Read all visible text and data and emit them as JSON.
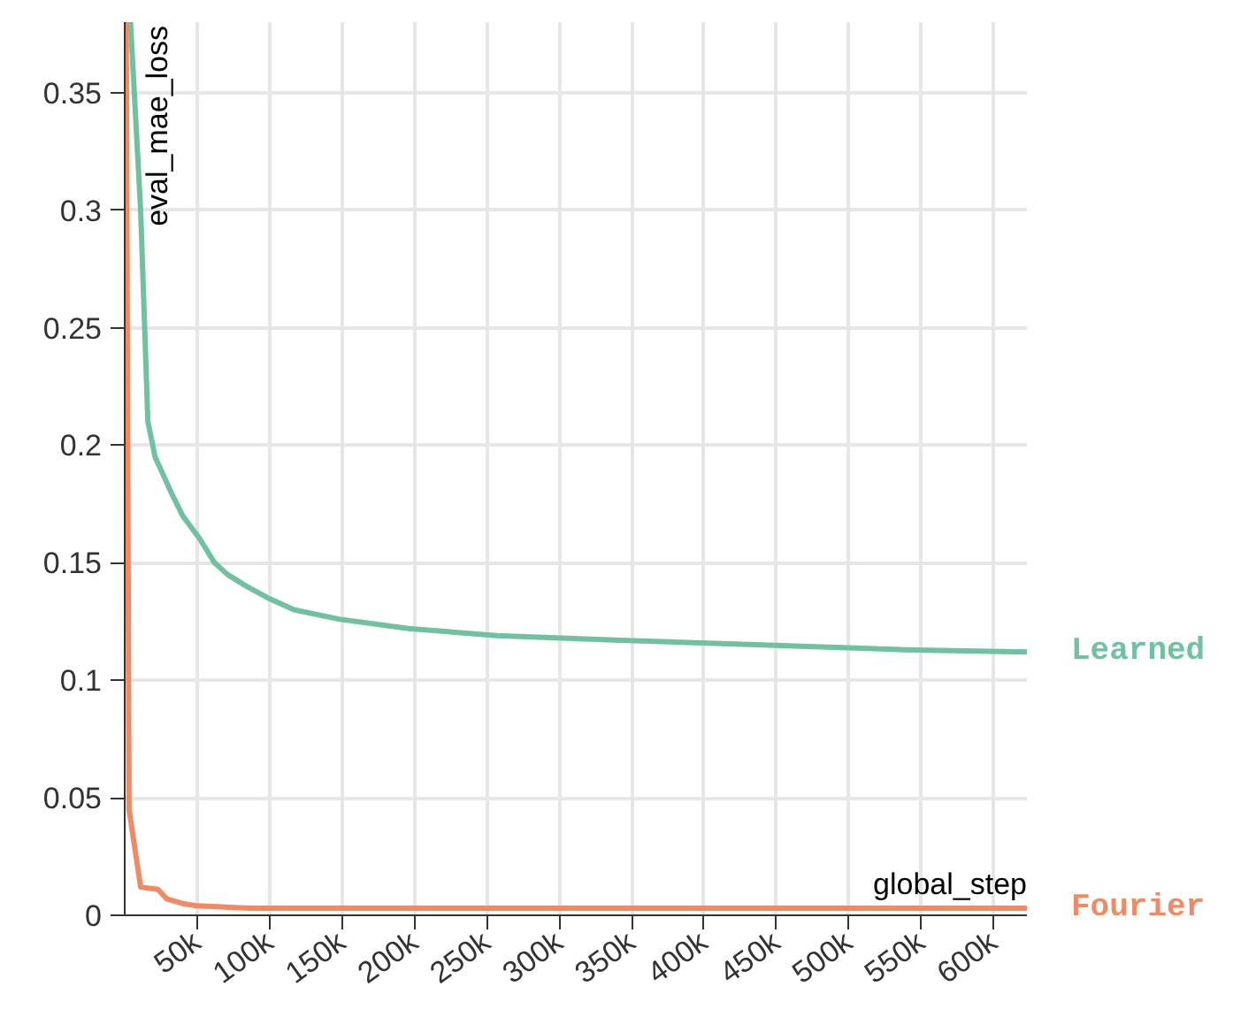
{
  "chart_data": {
    "type": "line",
    "xlabel": "global_step",
    "ylabel": "eval_mae_loss",
    "xlim": [
      0,
      623000
    ],
    "ylim": [
      0,
      0.38
    ],
    "xticks": [
      {
        "value": 50000,
        "label": "50k"
      },
      {
        "value": 100000,
        "label": "100k"
      },
      {
        "value": 150000,
        "label": "150k"
      },
      {
        "value": 200000,
        "label": "200k"
      },
      {
        "value": 250000,
        "label": "250k"
      },
      {
        "value": 300000,
        "label": "300k"
      },
      {
        "value": 350000,
        "label": "350k"
      },
      {
        "value": 400000,
        "label": "400k"
      },
      {
        "value": 450000,
        "label": "450k"
      },
      {
        "value": 500000,
        "label": "500k"
      },
      {
        "value": 550000,
        "label": "550k"
      },
      {
        "value": 600000,
        "label": "600k"
      }
    ],
    "yticks": [
      0,
      0.05,
      0.1,
      0.15,
      0.2,
      0.25,
      0.3,
      0.35
    ],
    "grid": true,
    "series": [
      {
        "name": "Learned",
        "color": "#6fc1a0",
        "x": [
          4000,
          11000,
          16000,
          21000,
          32000,
          40000,
          52000,
          62000,
          71000,
          84000,
          99000,
          117000,
          148000,
          196000,
          257000,
          342000,
          440000,
          537000,
          623000
        ],
        "values": [
          0.38,
          0.3,
          0.21,
          0.195,
          0.18,
          0.17,
          0.16,
          0.15,
          0.145,
          0.14,
          0.135,
          0.13,
          0.126,
          0.122,
          0.119,
          0.117,
          0.115,
          0.113,
          0.112
        ]
      },
      {
        "name": "Fourier",
        "color": "#ef8a62",
        "x": [
          1000,
          3000,
          11000,
          23000,
          29000,
          40000,
          50000,
          87000,
          623000
        ],
        "values": [
          0.38,
          0.045,
          0.012,
          0.011,
          0.007,
          0.005,
          0.004,
          0.003,
          0.003
        ]
      }
    ]
  }
}
